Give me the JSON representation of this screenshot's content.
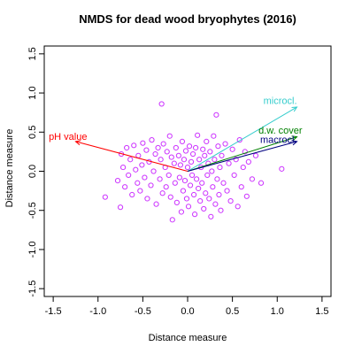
{
  "chart_data": {
    "type": "scatter",
    "title": "NMDS for dead wood bryophytes (2016)",
    "xlabel": "Distance measure",
    "ylabel": "Distance measure",
    "xlim": [
      -1.6,
      1.6
    ],
    "ylim": [
      -1.6,
      1.6
    ],
    "x_ticks": [
      -1.5,
      -1.0,
      -0.5,
      0.0,
      0.5,
      1.0,
      1.5
    ],
    "x_tick_labels": [
      "-1.5",
      "-1.0",
      "-0.5",
      "0.0",
      "0.5",
      "1.0",
      "1.5"
    ],
    "y_ticks": [
      -1.5,
      -1.0,
      -0.5,
      0.0,
      0.5,
      1.0,
      1.5
    ],
    "y_tick_labels": [
      "-1.5",
      "-1.0",
      "-0.5",
      "0.0",
      "0.5",
      "1.0",
      "1.5"
    ],
    "point_color": "#cc33ff",
    "points": [
      [
        -0.92,
        -0.33
      ],
      [
        -0.78,
        -0.12
      ],
      [
        -0.75,
        -0.46
      ],
      [
        -0.74,
        0.22
      ],
      [
        -0.72,
        0.05
      ],
      [
        -0.7,
        -0.2
      ],
      [
        -0.68,
        0.3
      ],
      [
        -0.66,
        -0.05
      ],
      [
        -0.64,
        0.15
      ],
      [
        -0.62,
        -0.3
      ],
      [
        -0.6,
        0.33
      ],
      [
        -0.58,
        0.02
      ],
      [
        -0.56,
        -0.15
      ],
      [
        -0.55,
        0.2
      ],
      [
        -0.53,
        -0.25
      ],
      [
        -0.51,
        0.08
      ],
      [
        -0.5,
        0.36
      ],
      [
        -0.48,
        -0.08
      ],
      [
        -0.46,
        0.27
      ],
      [
        -0.45,
        -0.35
      ],
      [
        -0.43,
        0.12
      ],
      [
        -0.41,
        -0.18
      ],
      [
        -0.4,
        0.4
      ],
      [
        -0.38,
        0.0
      ],
      [
        -0.36,
        0.22
      ],
      [
        -0.35,
        -0.42
      ],
      [
        -0.33,
        0.3
      ],
      [
        -0.31,
        -0.1
      ],
      [
        -0.3,
        0.15
      ],
      [
        -0.29,
        0.86
      ],
      [
        -0.28,
        -0.28
      ],
      [
        -0.27,
        0.35
      ],
      [
        -0.25,
        0.05
      ],
      [
        -0.24,
        -0.2
      ],
      [
        -0.23,
        0.25
      ],
      [
        -0.21,
        -0.05
      ],
      [
        -0.2,
        0.45
      ],
      [
        -0.19,
        -0.33
      ],
      [
        -0.18,
        0.18
      ],
      [
        -0.17,
        -0.62
      ],
      [
        -0.15,
        0.1
      ],
      [
        -0.14,
        -0.15
      ],
      [
        -0.13,
        0.3
      ],
      [
        -0.12,
        -0.4
      ],
      [
        -0.1,
        0.2
      ],
      [
        -0.09,
        -0.08
      ],
      [
        -0.08,
        0.08
      ],
      [
        -0.07,
        -0.52
      ],
      [
        -0.06,
        0.38
      ],
      [
        -0.05,
        -0.25
      ],
      [
        -0.04,
        0.15
      ],
      [
        -0.03,
        -0.12
      ],
      [
        -0.02,
        0.26
      ],
      [
        -0.01,
        -0.35
      ],
      [
        0.0,
        0.05
      ],
      [
        0.01,
        -0.45
      ],
      [
        0.02,
        0.32
      ],
      [
        0.03,
        -0.18
      ],
      [
        0.04,
        0.12
      ],
      [
        0.05,
        -0.05
      ],
      [
        0.06,
        0.22
      ],
      [
        0.07,
        -0.3
      ],
      [
        0.08,
        -0.55
      ],
      [
        0.09,
        0.3
      ],
      [
        0.1,
        -0.1
      ],
      [
        0.11,
        0.46
      ],
      [
        0.12,
        -0.22
      ],
      [
        0.13,
        0.15
      ],
      [
        0.14,
        -0.38
      ],
      [
        0.15,
        0.05
      ],
      [
        0.16,
        -0.15
      ],
      [
        0.17,
        0.28
      ],
      [
        0.18,
        -0.48
      ],
      [
        0.19,
        0.2
      ],
      [
        0.2,
        -0.28
      ],
      [
        0.21,
        0.38
      ],
      [
        0.22,
        -0.05
      ],
      [
        0.23,
        0.1
      ],
      [
        0.24,
        -0.35
      ],
      [
        0.25,
        0.25
      ],
      [
        0.26,
        -0.58
      ],
      [
        0.27,
        0.0
      ],
      [
        0.28,
        -0.2
      ],
      [
        0.29,
        0.45
      ],
      [
        0.3,
        0.15
      ],
      [
        0.31,
        -0.42
      ],
      [
        0.32,
        0.72
      ],
      [
        0.33,
        -0.1
      ],
      [
        0.34,
        0.32
      ],
      [
        0.35,
        -0.3
      ],
      [
        0.36,
        0.05
      ],
      [
        0.37,
        -0.5
      ],
      [
        0.38,
        0.2
      ],
      [
        0.4,
        -0.15
      ],
      [
        0.42,
        0.35
      ],
      [
        0.44,
        -0.25
      ],
      [
        0.46,
        0.1
      ],
      [
        0.48,
        -0.38
      ],
      [
        0.5,
        0.28
      ],
      [
        0.52,
        -0.05
      ],
      [
        0.54,
        0.15
      ],
      [
        0.56,
        -0.45
      ],
      [
        0.58,
        0.4
      ],
      [
        0.6,
        -0.2
      ],
      [
        0.62,
        0.05
      ],
      [
        0.64,
        0.25
      ],
      [
        0.66,
        -0.32
      ],
      [
        0.68,
        0.12
      ],
      [
        0.72,
        -0.1
      ],
      [
        0.76,
        0.2
      ],
      [
        0.82,
        -0.15
      ],
      [
        1.05,
        0.03
      ]
    ],
    "vectors": [
      {
        "name": "pH value",
        "x": -1.25,
        "y": 0.38,
        "color": "#ff0000",
        "label_x": -1.55,
        "label_y": 0.4,
        "anchor": "start"
      },
      {
        "name": "microcl.",
        "x": 1.22,
        "y": 0.82,
        "color": "#33cccc",
        "label_x": 1.22,
        "label_y": 0.86,
        "anchor": "end"
      },
      {
        "name": "d.w. cover",
        "x": 1.22,
        "y": 0.44,
        "color": "#008000",
        "label_x": 1.28,
        "label_y": 0.48,
        "anchor": "end"
      },
      {
        "name": "macrocl.",
        "x": 1.22,
        "y": 0.38,
        "color": "#000080",
        "label_x": 1.22,
        "label_y": 0.36,
        "anchor": "end"
      }
    ]
  }
}
